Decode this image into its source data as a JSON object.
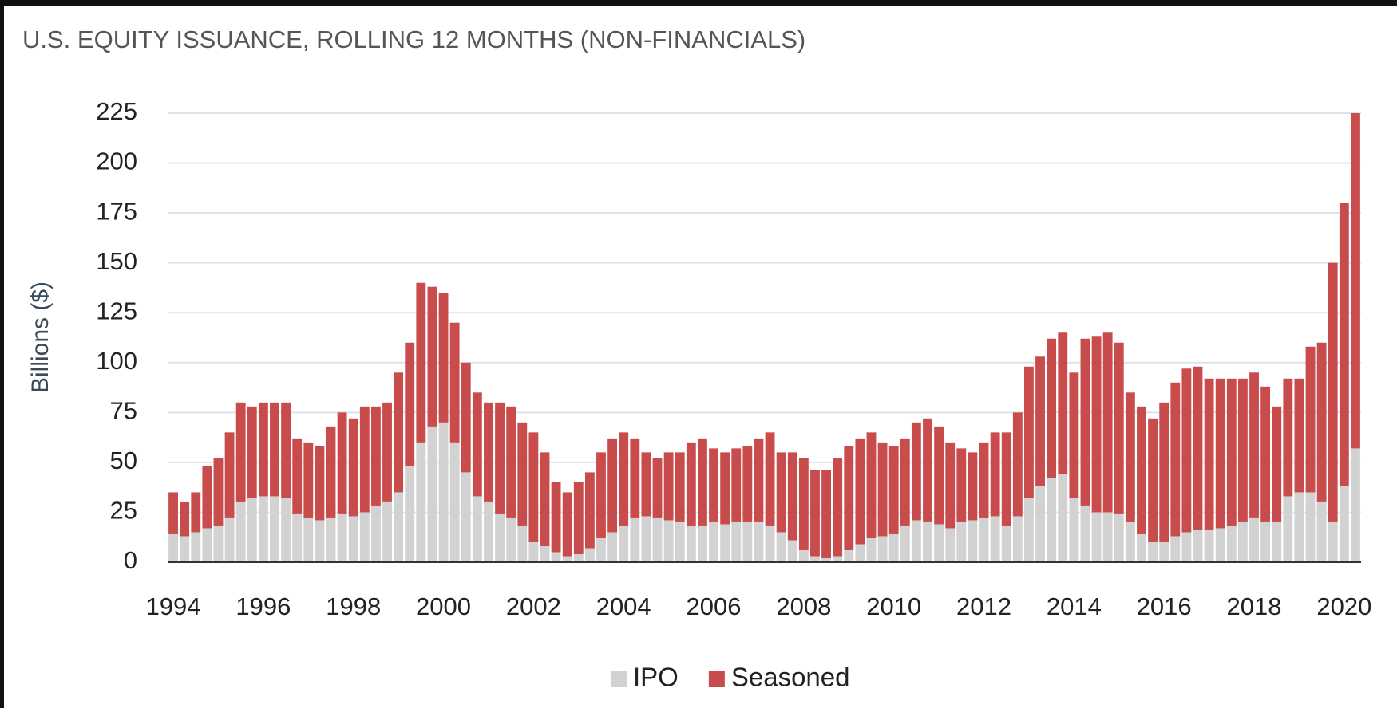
{
  "chart_data": {
    "type": "stacked_bar",
    "title": "U.S. EQUITY ISSUANCE, ROLLING 12 MONTHS (NON-FINANCIALS)",
    "y_label": "Billions ($)",
    "categories": [
      "1994",
      null,
      null,
      null,
      null,
      null,
      null,
      null,
      "1996",
      null,
      null,
      null,
      null,
      null,
      null,
      null,
      "1998",
      null,
      null,
      null,
      null,
      null,
      null,
      null,
      "2000",
      null,
      null,
      null,
      null,
      null,
      null,
      null,
      "2002",
      null,
      null,
      null,
      null,
      null,
      null,
      null,
      "2004",
      null,
      null,
      null,
      null,
      null,
      null,
      null,
      "2006",
      null,
      null,
      null,
      null,
      null,
      null,
      null,
      "2008",
      null,
      null,
      null,
      null,
      null,
      null,
      null,
      "2010",
      null,
      null,
      null,
      null,
      null,
      null,
      null,
      "2012",
      null,
      null,
      null,
      null,
      null,
      null,
      null,
      "2014",
      null,
      null,
      null,
      null,
      null,
      null,
      null,
      "2016",
      null,
      null,
      null,
      null,
      null,
      null,
      null,
      "2018",
      null,
      null,
      null,
      null,
      null,
      null,
      null,
      "2020",
      null
    ],
    "series": [
      {
        "name": "IPO",
        "color": "#d2d2d2",
        "values": [
          14,
          13,
          15,
          17,
          18,
          22,
          30,
          32,
          33,
          33,
          32,
          24,
          22,
          21,
          22,
          24,
          23,
          25,
          28,
          30,
          35,
          48,
          60,
          68,
          70,
          60,
          45,
          33,
          30,
          24,
          22,
          18,
          10,
          8,
          5,
          3,
          4,
          7,
          12,
          15,
          18,
          22,
          23,
          22,
          21,
          20,
          18,
          18,
          20,
          19,
          20,
          20,
          20,
          18,
          15,
          11,
          6,
          3,
          2,
          3,
          6,
          9,
          12,
          13,
          14,
          18,
          21,
          20,
          19,
          17,
          20,
          21,
          22,
          23,
          18,
          23,
          32,
          38,
          42,
          44,
          32,
          28,
          25,
          25,
          24,
          20,
          14,
          10,
          10,
          13,
          15,
          16,
          16,
          17,
          18,
          20,
          22,
          20,
          20,
          33,
          35,
          35,
          30,
          20,
          38,
          57
        ]
      },
      {
        "name": "Seasoned",
        "color": "#c94c4c",
        "values": [
          21,
          17,
          20,
          31,
          34,
          43,
          50,
          46,
          47,
          47,
          48,
          38,
          38,
          37,
          46,
          51,
          49,
          53,
          50,
          50,
          60,
          62,
          80,
          70,
          65,
          60,
          55,
          52,
          50,
          56,
          56,
          52,
          55,
          47,
          35,
          32,
          36,
          38,
          43,
          47,
          47,
          40,
          32,
          30,
          34,
          35,
          42,
          44,
          37,
          36,
          37,
          38,
          42,
          47,
          40,
          44,
          46,
          43,
          44,
          49,
          52,
          53,
          53,
          47,
          44,
          44,
          49,
          52,
          49,
          43,
          37,
          34,
          38,
          42,
          47,
          52,
          66,
          65,
          70,
          71,
          63,
          84,
          88,
          90,
          86,
          65,
          64,
          62,
          70,
          77,
          82,
          82,
          76,
          75,
          74,
          72,
          73,
          68,
          58,
          59,
          57,
          73,
          80,
          130,
          142,
          168
        ]
      }
    ],
    "ylim": [
      0,
      225
    ],
    "yticks": [
      0,
      25,
      50,
      75,
      100,
      125,
      150,
      175,
      200,
      225
    ],
    "grid": true,
    "legend": "bottom"
  }
}
